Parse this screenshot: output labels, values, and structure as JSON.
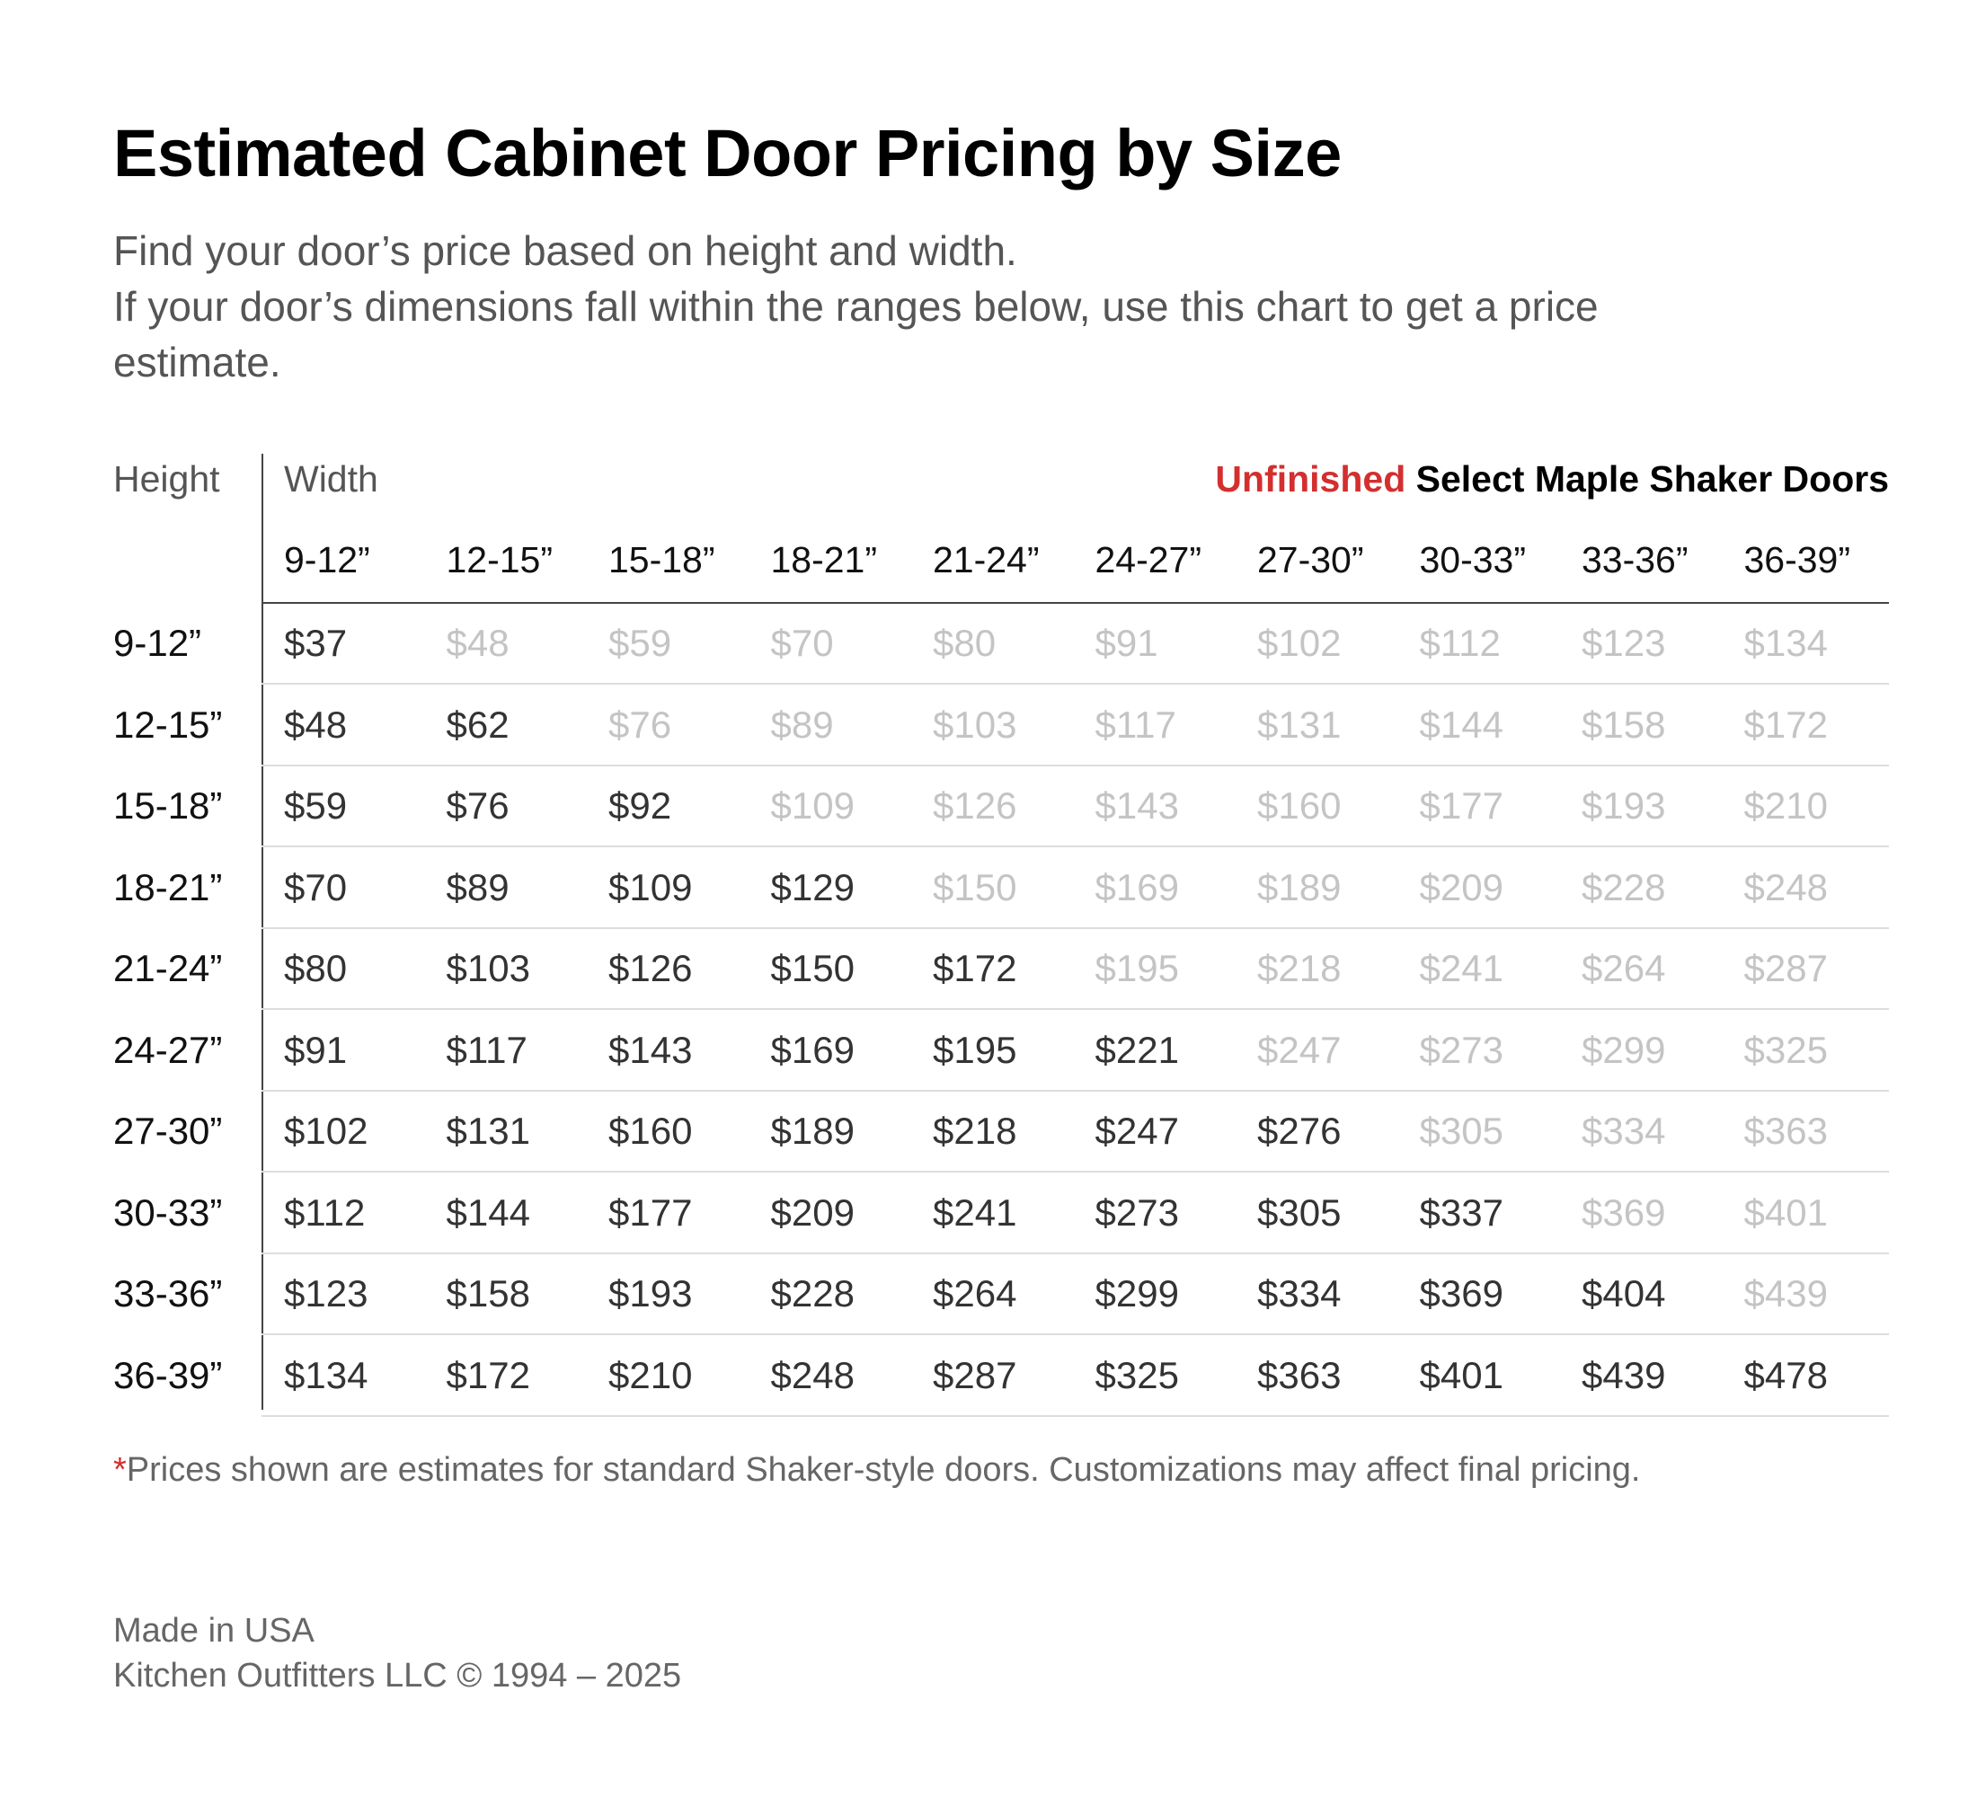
{
  "title": "Estimated Cabinet Door Pricing by Size",
  "subtitle": {
    "line1": "Find your door’s price based on height and width.",
    "line2": "If your door’s dimensions fall within the ranges below, use this chart to get a price",
    "line3": "estimate."
  },
  "table": {
    "height_label": "Height",
    "width_label": "Width",
    "product_accent": "Unfinished",
    "product_rest": " Select Maple Shaker Doors",
    "accent_color": "#d32f2f",
    "columns": [
      "9-12”",
      "12-15”",
      "15-18”",
      "18-21”",
      "21-24”",
      "24-27”",
      "27-30”",
      "30-33”",
      "33-36”",
      "36-39”"
    ],
    "rows": [
      {
        "label": "9-12”",
        "prices": [
          "$37",
          "$48",
          "$59",
          "$70",
          "$80",
          "$91",
          "$102",
          "$112",
          "$123",
          "$134"
        ]
      },
      {
        "label": "12-15”",
        "prices": [
          "$48",
          "$62",
          "$76",
          "$89",
          "$103",
          "$117",
          "$131",
          "$144",
          "$158",
          "$172"
        ]
      },
      {
        "label": "15-18”",
        "prices": [
          "$59",
          "$76",
          "$92",
          "$109",
          "$126",
          "$143",
          "$160",
          "$177",
          "$193",
          "$210"
        ]
      },
      {
        "label": "18-21”",
        "prices": [
          "$70",
          "$89",
          "$109",
          "$129",
          "$150",
          "$169",
          "$189",
          "$209",
          "$228",
          "$248"
        ]
      },
      {
        "label": "21-24”",
        "prices": [
          "$80",
          "$103",
          "$126",
          "$150",
          "$172",
          "$195",
          "$218",
          "$241",
          "$264",
          "$287"
        ]
      },
      {
        "label": "24-27”",
        "prices": [
          "$91",
          "$117",
          "$143",
          "$169",
          "$195",
          "$221",
          "$247",
          "$273",
          "$299",
          "$325"
        ]
      },
      {
        "label": "27-30”",
        "prices": [
          "$102",
          "$131",
          "$160",
          "$189",
          "$218",
          "$247",
          "$276",
          "$305",
          "$334",
          "$363"
        ]
      },
      {
        "label": "30-33”",
        "prices": [
          "$112",
          "$144",
          "$177",
          "$209",
          "$241",
          "$273",
          "$305",
          "$337",
          "$369",
          "$401"
        ]
      },
      {
        "label": "33-36”",
        "prices": [
          "$123",
          "$158",
          "$193",
          "$228",
          "$264",
          "$299",
          "$334",
          "$369",
          "$404",
          "$439"
        ]
      },
      {
        "label": "36-39”",
        "prices": [
          "$134",
          "$172",
          "$210",
          "$248",
          "$287",
          "$325",
          "$363",
          "$401",
          "$439",
          "$478"
        ]
      }
    ]
  },
  "footnote": {
    "star": "*",
    "text": "Prices shown are estimates for standard Shaker-style doors. Customizations may affect final pricing."
  },
  "footer": {
    "line1": "Made in USA",
    "line2": "Kitchen Outfitters LLC © 1994 – 2025"
  }
}
